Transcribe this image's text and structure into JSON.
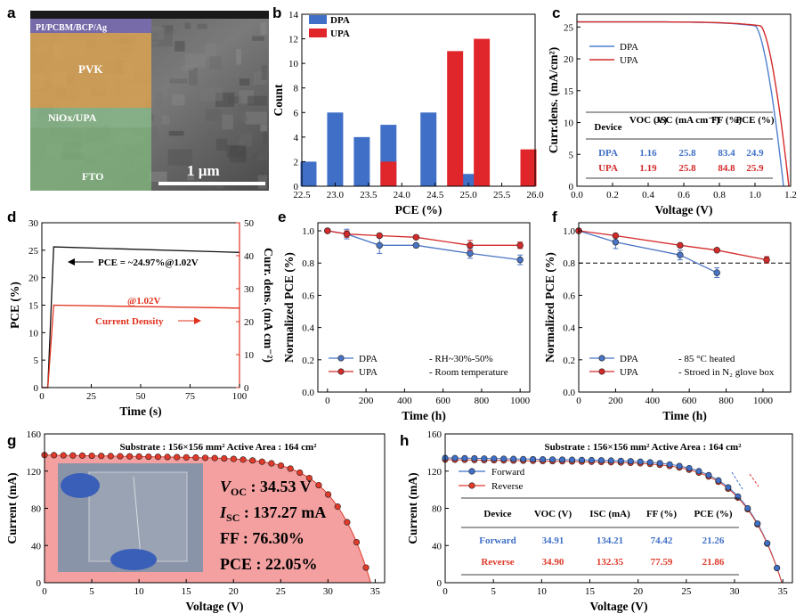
{
  "chart_data": [
    {
      "panel": "a",
      "type": "image",
      "layers": [
        "PI/PCBM/BCP/Ag",
        "PVK",
        "NiOx/UPA",
        "FTO"
      ],
      "scale_bar": "1 µm",
      "colors": {
        "top": "#7a6bb0",
        "pvk": "#d7a253",
        "nio": "#89b989",
        "fto": "#7fb07c"
      }
    },
    {
      "panel": "b",
      "type": "bar",
      "xlabel": "PCE (%)",
      "ylabel": "Count",
      "xlim": [
        22.5,
        26.0
      ],
      "ylim": [
        0,
        14
      ],
      "xticks": [
        22.5,
        23.0,
        23.5,
        24.0,
        24.5,
        25.0,
        25.5,
        26.0
      ],
      "yticks": [
        0,
        2,
        4,
        6,
        8,
        10,
        12,
        14
      ],
      "series": [
        {
          "name": "DPA",
          "color": "#3f6fc7",
          "bins": [
            22.6,
            23.0,
            23.4,
            23.8,
            24.4,
            25.0
          ],
          "values": [
            2,
            6,
            4,
            5,
            6,
            1
          ]
        },
        {
          "name": "UPA",
          "color": "#e0262a",
          "bins": [
            23.8,
            24.8,
            25.2,
            25.9
          ],
          "values": [
            2,
            11,
            12,
            3
          ]
        }
      ]
    },
    {
      "panel": "c",
      "type": "line",
      "xlabel": "Voltage (V)",
      "ylabel": "Curr.dens. (mA/cm²)",
      "xlim": [
        0,
        1.2
      ],
      "ylim": [
        0,
        27
      ],
      "xticks": [
        0.0,
        0.2,
        0.4,
        0.6,
        0.8,
        1.0,
        1.2
      ],
      "yticks": [
        0,
        5,
        10,
        15,
        20,
        25
      ],
      "series": [
        {
          "name": "DPA",
          "color": "#4f7fcf",
          "voc": 1.16,
          "jsc": 25.8,
          "knee": 1.0
        },
        {
          "name": "UPA",
          "color": "#d42a2a",
          "voc": 1.19,
          "jsc": 25.8,
          "knee": 1.03
        }
      ],
      "table": {
        "headers": [
          "Device",
          "VOC (V)",
          "JSC (mA cm⁻²)",
          "FF (%)",
          "PCE (%)"
        ],
        "rows": [
          [
            "DPA",
            "1.16",
            "25.8",
            "83.4",
            "24.9"
          ],
          [
            "UPA",
            "1.19",
            "25.8",
            "84.8",
            "25.9"
          ]
        ]
      }
    },
    {
      "panel": "d",
      "type": "line",
      "xlabel": "Time (s)",
      "ylabel": "PCE (%)",
      "ylabel2": "Curr. dens. (mA cm⁻²)",
      "xlim": [
        0,
        100
      ],
      "ylim": [
        0,
        30
      ],
      "ylim2": [
        0,
        50
      ],
      "xticks": [
        0,
        25,
        50,
        75,
        100
      ],
      "yticks": [
        0,
        5,
        10,
        15,
        20,
        25,
        30
      ],
      "yticks2": [
        0,
        10,
        20,
        30,
        40,
        50
      ],
      "series": [
        {
          "name": "PCE",
          "color": "#111111",
          "x": [
            0,
            3,
            6,
            100
          ],
          "y": [
            0,
            0,
            25.6,
            24.6
          ]
        },
        {
          "name": "Current Density",
          "color": "#e0301e",
          "x": [
            0,
            3,
            6,
            100
          ],
          "y2": [
            0,
            0,
            25.0,
            24.1
          ]
        }
      ],
      "annotations": [
        "PCE = ~24.97%@1.02V",
        "@1.02V",
        "Current Density"
      ]
    },
    {
      "panel": "e",
      "type": "line",
      "xlabel": "Time (h)",
      "ylabel": "Normalized PCE (%)",
      "xlim": [
        -50,
        1050
      ],
      "ylim": [
        0,
        1.05
      ],
      "xticks": [
        0,
        200,
        400,
        600,
        800,
        1000
      ],
      "yticks": [
        0.0,
        0.2,
        0.4,
        0.6,
        0.8,
        1.0
      ],
      "series": [
        {
          "name": "DPA",
          "color": "#4a74c4",
          "x": [
            0,
            100,
            270,
            460,
            740,
            1000
          ],
          "y": [
            1.0,
            0.98,
            0.91,
            0.91,
            0.86,
            0.82
          ],
          "err": [
            0,
            0.03,
            0.05,
            0.01,
            0.03,
            0.03
          ]
        },
        {
          "name": "UPA",
          "color": "#d42a2a",
          "x": [
            0,
            100,
            270,
            460,
            740,
            1000
          ],
          "y": [
            1.0,
            0.98,
            0.97,
            0.96,
            0.91,
            0.91
          ],
          "err": [
            0,
            0.02,
            0.01,
            0.01,
            0.03,
            0.02
          ]
        }
      ],
      "notes": [
        "- RH~30%-50%",
        "- Room temperature"
      ]
    },
    {
      "panel": "f",
      "type": "line",
      "xlabel": "Time (h)",
      "ylabel": "Normalized PCE (%)",
      "xlim": [
        0,
        1150
      ],
      "ylim": [
        0,
        1.05
      ],
      "xticks": [
        0,
        200,
        400,
        600,
        800,
        1000
      ],
      "yticks": [
        0.0,
        0.2,
        0.4,
        0.6,
        0.8,
        1.0
      ],
      "reference_line": 0.8,
      "series": [
        {
          "name": "DPA",
          "color": "#4a74c4",
          "x": [
            0,
            200,
            550,
            750
          ],
          "y": [
            1.0,
            0.93,
            0.85,
            0.74
          ],
          "err": [
            0,
            0.04,
            0.03,
            0.03
          ]
        },
        {
          "name": "UPA",
          "color": "#d42a2a",
          "x": [
            0,
            200,
            550,
            750,
            1020
          ],
          "y": [
            1.0,
            0.97,
            0.91,
            0.88,
            0.82
          ],
          "err": [
            0,
            0.01,
            0.01,
            0.01,
            0.02
          ]
        }
      ],
      "notes": [
        "- 85 °C heated",
        "- Stroed in N₂ glove box"
      ]
    },
    {
      "panel": "g",
      "type": "line",
      "title": "Substrate : 156×156 mm²  Active Area : 164 cm²",
      "xlabel": "Voltage (V)",
      "ylabel": "Current (mA)",
      "xlim": [
        0,
        36
      ],
      "ylim": [
        0,
        160
      ],
      "xticks": [
        0,
        5,
        10,
        15,
        20,
        25,
        30,
        35
      ],
      "yticks": [
        0,
        40,
        80,
        120,
        160
      ],
      "series": [
        {
          "name": "I-V",
          "color": "#e03a2a",
          "fill": "#f4a0a0",
          "voc": 34.53,
          "isc": 137.27
        }
      ],
      "metrics": {
        "voc_label": "V",
        "voc_sub": "OC",
        "voc_value": " : 34.53 V",
        "isc_label": "I",
        "isc_sub": "SC",
        "isc_value": " : 137.27 mA",
        "ff": "FF : 76.30%",
        "pce": "PCE : 22.05%"
      }
    },
    {
      "panel": "h",
      "type": "line",
      "title": "Substrate : 156×156 mm²  Active Area : 164 cm²",
      "xlabel": "Voltage (V)",
      "ylabel": "Current (mA)",
      "xlim": [
        0,
        36
      ],
      "ylim": [
        0,
        160
      ],
      "xticks": [
        0,
        5,
        10,
        15,
        20,
        25,
        30,
        35
      ],
      "yticks": [
        0,
        40,
        80,
        120,
        160
      ],
      "series": [
        {
          "name": "Forward",
          "color": "#3f6fc7",
          "voc": 34.91,
          "isc": 134.21
        },
        {
          "name": "Reverse",
          "color": "#e03a2a",
          "voc": 34.9,
          "isc": 132.35
        }
      ],
      "table": {
        "headers": [
          "Device",
          "VOC (V)",
          "ISC (mA)",
          "FF (%)",
          "PCE (%)"
        ],
        "rows": [
          [
            "Forward",
            "34.91",
            "134.21",
            "74.42",
            "21.26"
          ],
          [
            "Reverse",
            "34.90",
            "132.35",
            "77.59",
            "21.86"
          ]
        ]
      }
    }
  ]
}
